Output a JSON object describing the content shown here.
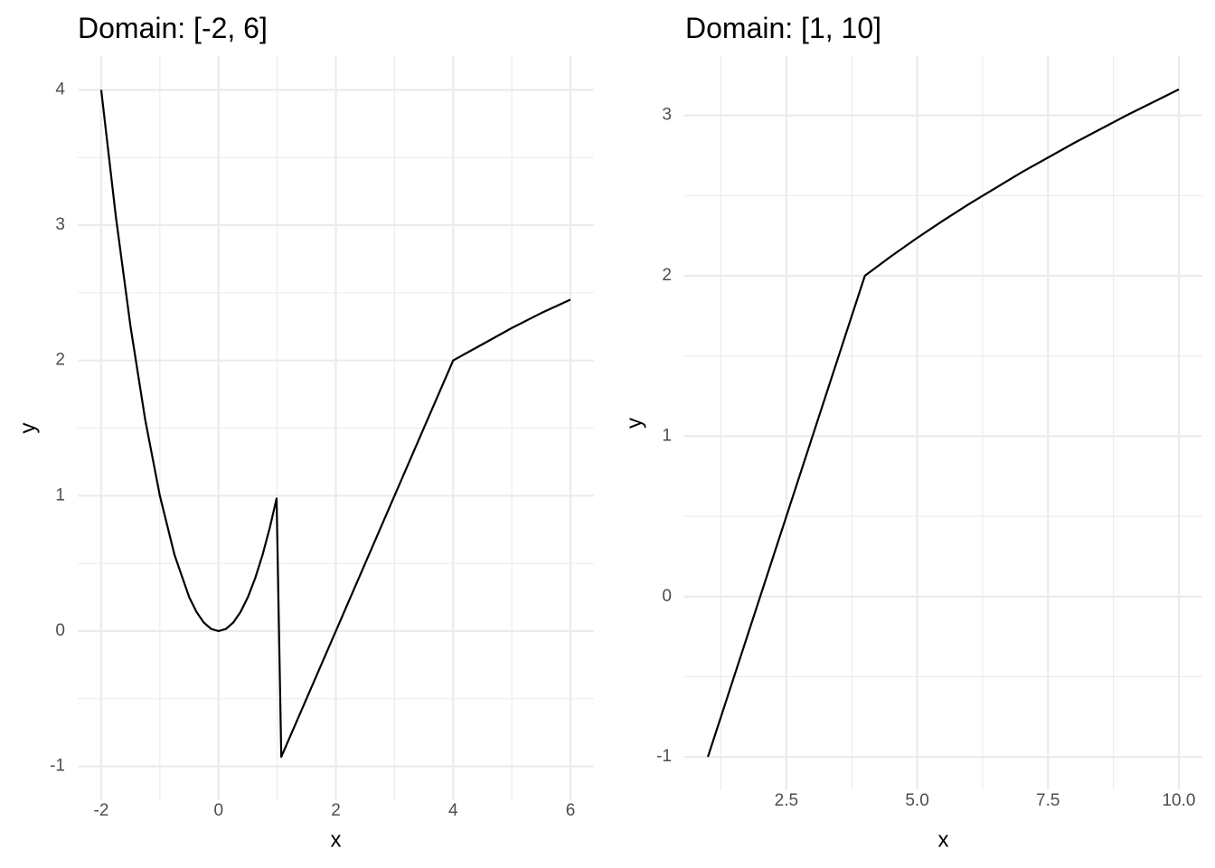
{
  "chart_data": [
    {
      "type": "line",
      "title": "Domain: [-2, 6]",
      "x_label": "x",
      "y_label": "y",
      "color": "#000000",
      "grid": true,
      "x": [
        -2,
        -1.75,
        -1.5,
        -1.25,
        -1,
        -0.75,
        -0.5,
        -0.375,
        -0.25,
        -0.125,
        0,
        0.125,
        0.25,
        0.375,
        0.5,
        0.625,
        0.75,
        0.875,
        0.99,
        1.07,
        4,
        4.04,
        4.5,
        5,
        5.5,
        6
      ],
      "values": [
        4,
        3.0625,
        2.25,
        1.5625,
        1,
        0.5625,
        0.25,
        0.1406,
        0.0625,
        0.0156,
        0,
        0.0156,
        0.0625,
        0.1406,
        0.25,
        0.3906,
        0.5625,
        0.7656,
        0.98,
        -0.93,
        2,
        2.01,
        2.12,
        2.24,
        2.35,
        2.45
      ],
      "xlim": [
        -2.4,
        6.4
      ],
      "ylim": [
        -1.25,
        4.25
      ],
      "xticks": [
        -2,
        0,
        2,
        4,
        6
      ],
      "yticks": [
        -1,
        0,
        1,
        2,
        3,
        4
      ],
      "xminor_ticks": [
        -1,
        1,
        3,
        5
      ],
      "yminor_ticks": [
        -0.5,
        0.5,
        1.5,
        2.5,
        3.5
      ]
    },
    {
      "type": "line",
      "title": "Domain: [1, 10]",
      "x_label": "x",
      "y_label": "y",
      "color": "#000000",
      "grid": true,
      "x": [
        1,
        4,
        4.5,
        5,
        5.5,
        6,
        7,
        8,
        9,
        10
      ],
      "values": [
        -1,
        2,
        2.121,
        2.236,
        2.345,
        2.449,
        2.646,
        2.828,
        3,
        3.162
      ],
      "xlim": [
        0.55,
        10.45
      ],
      "ylim": [
        -1.208,
        3.37
      ],
      "xticks": [
        2.5,
        {
          "value": 5,
          "label": "5.0"
        },
        7.5,
        {
          "value": 10,
          "label": "10.0"
        }
      ],
      "yticks": [
        -1,
        0,
        1,
        2,
        3
      ],
      "xminor_ticks": [
        1.25,
        3.75,
        6.25,
        8.75
      ],
      "yminor_ticks": [
        -0.5,
        0.5,
        1.5,
        2.5
      ]
    }
  ]
}
